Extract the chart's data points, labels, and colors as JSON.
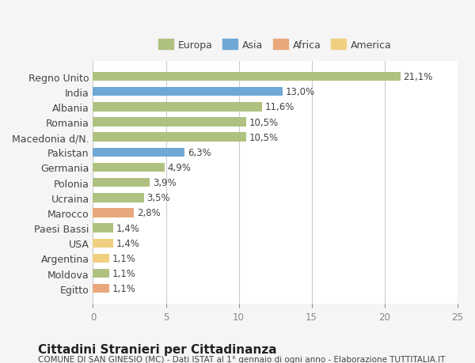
{
  "categories": [
    "Regno Unito",
    "India",
    "Albania",
    "Romania",
    "Macedonia d/N.",
    "Pakistan",
    "Germania",
    "Polonia",
    "Ucraina",
    "Marocco",
    "Paesi Bassi",
    "USA",
    "Argentina",
    "Moldova",
    "Egitto"
  ],
  "values": [
    21.1,
    13.0,
    11.6,
    10.5,
    10.5,
    6.3,
    4.9,
    3.9,
    3.5,
    2.8,
    1.4,
    1.4,
    1.1,
    1.1,
    1.1
  ],
  "labels": [
    "21,1%",
    "13,0%",
    "11,6%",
    "10,5%",
    "10,5%",
    "6,3%",
    "4,9%",
    "3,9%",
    "3,5%",
    "2,8%",
    "1,4%",
    "1,4%",
    "1,1%",
    "1,1%",
    "1,1%"
  ],
  "bar_colors": [
    "#afc180",
    "#6fa8d4",
    "#afc180",
    "#afc180",
    "#afc180",
    "#6fa8d4",
    "#afc180",
    "#afc180",
    "#afc180",
    "#e8a87c",
    "#afc180",
    "#f0d080",
    "#f0d080",
    "#afc180",
    "#e8a87c"
  ],
  "continent_labels": [
    "Europa",
    "Asia",
    "Africa",
    "America"
  ],
  "continent_colors": [
    "#afc180",
    "#6fa8d4",
    "#e8a87c",
    "#f0d080"
  ],
  "bg_color": "#f5f5f5",
  "bar_bg_color": "#ffffff",
  "title": "Cittadini Stranieri per Cittadinanza",
  "subtitle": "COMUNE DI SAN GINESIO (MC) - Dati ISTAT al 1° gennaio di ogni anno - Elaborazione TUTTITALIA.IT",
  "xlim": [
    0,
    25
  ],
  "xticks": [
    0,
    5,
    10,
    15,
    20,
    25
  ],
  "label_fontsize": 8.5,
  "title_fontsize": 11,
  "subtitle_fontsize": 7.5
}
